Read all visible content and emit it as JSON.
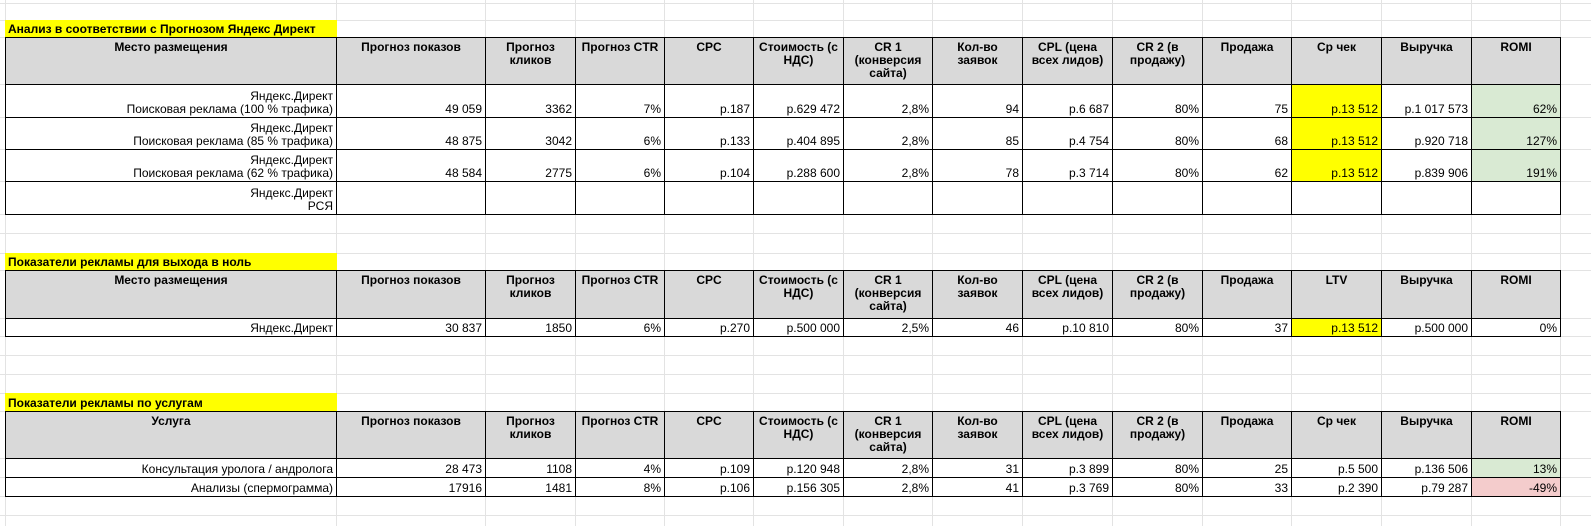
{
  "tables": [
    {
      "title": "Анализ в соответствии с Прогнозом Яндекс Директ",
      "header": [
        "Место размещения",
        "Прогноз показов",
        "Прогноз кликов",
        "Прогноз CTR",
        "CPC",
        "Стоимость (с НДС)",
        "CR 1 (конверсия сайта)",
        "Кол-во заявок",
        "CPL (цена всех лидов)",
        "CR 2 (в продажу)",
        "Продажа",
        "Ср чек",
        "Выручка",
        "ROMI"
      ],
      "rows": [
        [
          "Яндекс.Директ\nПоисковая реклама (100 % трафика)",
          "49 059",
          "3362",
          "7%",
          "р.187",
          "р.629 472",
          "2,8%",
          "94",
          "р.6 687",
          "80%",
          "75",
          "р.13 512",
          "р.1 017 573",
          "62%"
        ],
        [
          "Яндекс.Директ\nПоисковая реклама (85 % трафика)",
          "48 875",
          "3042",
          "6%",
          "р.133",
          "р.404 895",
          "2,8%",
          "85",
          "р.4 754",
          "80%",
          "68",
          "р.13 512",
          "р.920 718",
          "127%"
        ],
        [
          "Яндекс.Директ\nПоисковая реклама (62 % трафика)",
          "48 584",
          "2775",
          "6%",
          "р.104",
          "р.288 600",
          "2,8%",
          "78",
          "р.3 714",
          "80%",
          "62",
          "р.13 512",
          "р.839 906",
          "191%"
        ],
        [
          "Яндекс.Директ\nРСЯ",
          null,
          null,
          null,
          null,
          null,
          null,
          null,
          null,
          null,
          null,
          null,
          null,
          null
        ]
      ],
      "fills": [
        {
          "col": 11,
          "rows": [
            0,
            1,
            2
          ],
          "color": "#ffff00"
        },
        {
          "col": 13,
          "rows": [
            0,
            1,
            2
          ],
          "color": "#d9ead3"
        }
      ]
    },
    {
      "title": "Показатели рекламы для выхода в ноль",
      "header": [
        "Место размещения",
        "Прогноз показов",
        "Прогноз кликов",
        "Прогноз CTR",
        "CPC",
        "Стоимость (с НДС)",
        "CR 1 (конверсия сайта)",
        "Кол-во заявок",
        "CPL (цена всех лидов)",
        "CR 2 (в продажу)",
        "Продажа",
        "LTV",
        "Выручка",
        "ROMI"
      ],
      "rows": [
        [
          "Яндекс.Директ",
          "30 837",
          "1850",
          "6%",
          "р.270",
          "р.500 000",
          "2,5%",
          "46",
          "р.10 810",
          "80%",
          "37",
          "р.13 512",
          "р.500 000",
          "0%"
        ]
      ],
      "fills": [
        {
          "col": 11,
          "rows": [
            0
          ],
          "color": "#ffff00"
        }
      ]
    },
    {
      "title": "Показатели рекламы по услугам",
      "header": [
        "Услуга",
        "Прогноз показов",
        "Прогноз кликов",
        "Прогноз CTR",
        "CPC",
        "Стоимость (с НДС)",
        "CR 1 (конверсия сайта)",
        "Кол-во заявок",
        "CPL (цена всех лидов)",
        "CR 2 (в продажу)",
        "Продажа",
        "Ср чек",
        "Выручка",
        "ROMI"
      ],
      "rows": [
        [
          "Консультация уролога / андролога",
          "28 473",
          "1108",
          "4%",
          "р.109",
          "р.120 948",
          "2,8%",
          "31",
          "р.3 899",
          "80%",
          "25",
          "р.5 500",
          "р.136 506",
          "13%"
        ],
        [
          "Анализы (спермограмма)",
          "17916",
          "1481",
          "8%",
          "р.106",
          "р.156 305",
          "2,8%",
          "41",
          "р.3 769",
          "80%",
          "33",
          "р.2 390",
          "р.79 287",
          "-49%"
        ]
      ],
      "fills": [
        {
          "col": 13,
          "rows": [
            0
          ],
          "color": "#d9ead3"
        },
        {
          "col": 13,
          "rows": [
            1
          ],
          "color": "#f4cccc"
        }
      ]
    }
  ]
}
